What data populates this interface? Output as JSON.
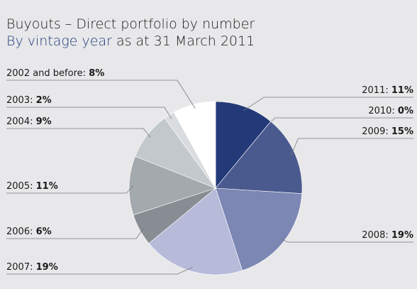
{
  "header": {
    "title": "Buyouts – Direct portfolio by number",
    "subtitle_accent": "By vintage year",
    "subtitle_rest": " as at 31 March 2011"
  },
  "chart_data": {
    "type": "pie",
    "title": "Buyouts – Direct portfolio by number",
    "subtitle": "By vintage year as at 31 March 2011",
    "slices": [
      {
        "label": "2011",
        "value": 11,
        "value_text": "11%",
        "color": "#243a78"
      },
      {
        "label": "2010",
        "value": 0,
        "value_text": "0%",
        "color": "#2f4580"
      },
      {
        "label": "2009",
        "value": 15,
        "value_text": "15%",
        "color": "#4a5a8e"
      },
      {
        "label": "2008",
        "value": 19,
        "value_text": "19%",
        "color": "#7c87b4"
      },
      {
        "label": "2007",
        "value": 19,
        "value_text": "19%",
        "color": "#b7bbd9"
      },
      {
        "label": "2006",
        "value": 6,
        "value_text": "6%",
        "color": "#878d92"
      },
      {
        "label": "2005",
        "value": 11,
        "value_text": "11%",
        "color": "#a3a9ad"
      },
      {
        "label": "2004",
        "value": 9,
        "value_text": "9%",
        "color": "#c3c8cc"
      },
      {
        "label": "2003",
        "value": 2,
        "value_text": "2%",
        "color": "#d9dcdf"
      },
      {
        "label": "2002 and before",
        "value": 8,
        "value_text": "8%",
        "color": "#ffffff"
      }
    ]
  }
}
